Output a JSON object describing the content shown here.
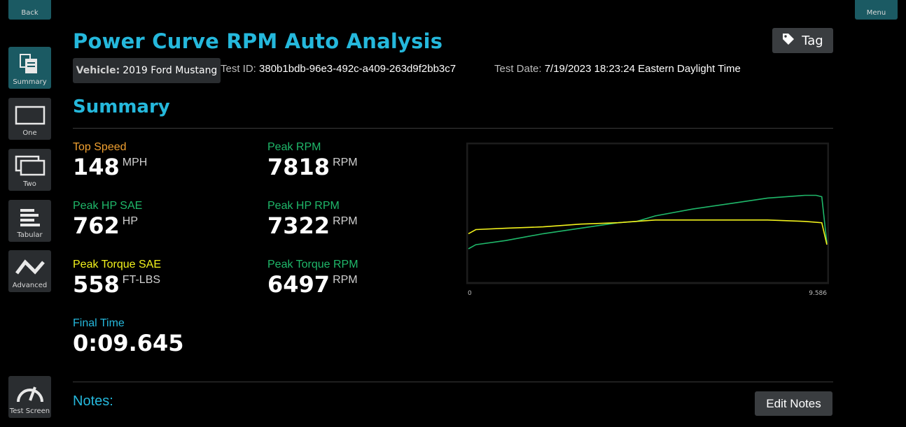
{
  "nav": {
    "back": "Back",
    "menu": "Menu",
    "summary": "Summary",
    "one": "One",
    "two": "Two",
    "tabular": "Tabular",
    "advanced": "Advanced",
    "test_screen": "Test Screen"
  },
  "header": {
    "title": "Power Curve RPM Auto Analysis",
    "tag_label": "Tag",
    "vehicle_label": "Vehicle:",
    "vehicle_value": "2019 Ford Mustang",
    "test_id_label": "Test ID:",
    "test_id_value": "380b1bdb-96e3-492c-a409-263d9f2bb3c7",
    "test_date_label": "Test Date:",
    "test_date_value": "7/19/2023 18:23:24 Eastern Daylight Time"
  },
  "summary": {
    "title": "Summary",
    "top_speed": {
      "label": "Top Speed",
      "value": "148",
      "unit": "MPH"
    },
    "peak_hp_sae": {
      "label": "Peak HP SAE",
      "value": "762",
      "unit": "HP"
    },
    "peak_torque_sae": {
      "label": "Peak Torque SAE",
      "value": "558",
      "unit": "FT-LBS"
    },
    "final_time": {
      "label": "Final Time",
      "value": "0:09.645"
    },
    "peak_rpm": {
      "label": "Peak RPM",
      "value": "7818",
      "unit": "RPM"
    },
    "peak_hp_rpm": {
      "label": "Peak HP RPM",
      "value": "7322",
      "unit": "RPM"
    },
    "peak_torque_rpm": {
      "label": "Peak Torque RPM",
      "value": "6497",
      "unit": "RPM"
    }
  },
  "colors": {
    "accent": "#25b8dc",
    "orange": "#f0a030",
    "green": "#1fb86a",
    "yellow": "#f2f21c"
  },
  "chart_data": {
    "type": "line",
    "xlim": [
      0,
      9.586
    ],
    "ylim": [
      0,
      1
    ],
    "xticks": [
      "0",
      "9.586"
    ],
    "series": [
      {
        "color": "#1fb86a",
        "x": [
          0,
          0.2,
          1,
          2,
          3,
          4,
          4.5,
          5,
          6,
          7,
          8,
          9,
          9.3,
          9.45,
          9.586
        ],
        "y": [
          0.24,
          0.27,
          0.3,
          0.35,
          0.39,
          0.43,
          0.44,
          0.48,
          0.53,
          0.57,
          0.61,
          0.63,
          0.63,
          0.62,
          0.28
        ]
      },
      {
        "color": "#f2f21c",
        "x": [
          0,
          0.2,
          1,
          2,
          3,
          4,
          5,
          6,
          7,
          8,
          9,
          9.45,
          9.586
        ],
        "y": [
          0.35,
          0.38,
          0.39,
          0.4,
          0.42,
          0.43,
          0.45,
          0.45,
          0.45,
          0.45,
          0.44,
          0.43,
          0.27
        ]
      }
    ]
  },
  "notes": {
    "title": "Notes:",
    "edit_label": "Edit Notes"
  }
}
